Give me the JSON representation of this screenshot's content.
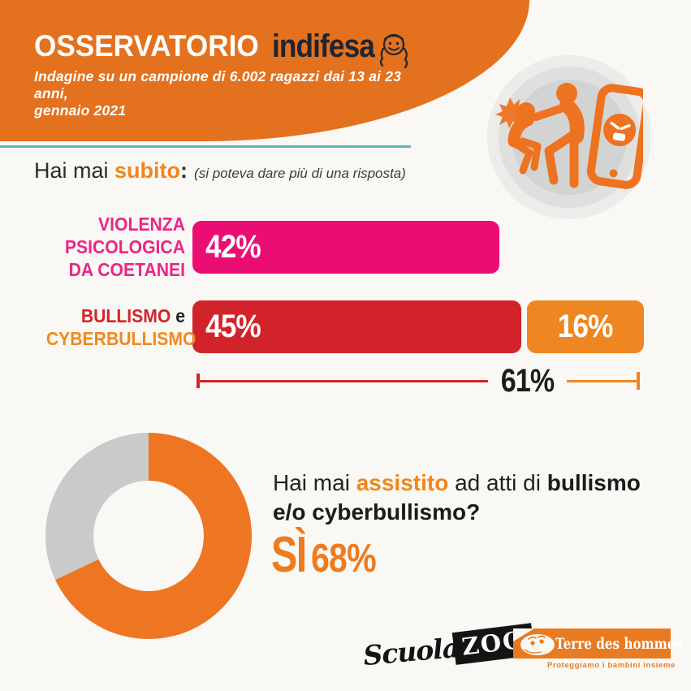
{
  "header": {
    "title": "OSSERVATORIO",
    "brand": "indifesa",
    "subtitle_line1": "Indagine su un campione di 6.002 ragazzi dai 13 ai 23 anni,",
    "subtitle_line2": "gennaio 2021"
  },
  "question1": {
    "prefix": "Hai mai ",
    "highlight": "subito",
    "colon": ":",
    "note": "(si poteva dare più di una risposta)"
  },
  "question2": {
    "prefix": "Hai mai ",
    "highlight": "assistito",
    "middle": " ad atti di ",
    "bold_line1": "bullismo",
    "bold_line2": "e/o cyberbullismo?",
    "answer_word": "SÌ",
    "answer_value": "68%"
  },
  "chart_data": [
    {
      "type": "bar",
      "orientation": "horizontal",
      "title": "Hai mai subito: (si poteva dare più di una risposta)",
      "unit": "%",
      "xlim": [
        0,
        100
      ],
      "rows": [
        {
          "category": "Violenza psicologica da coetanei",
          "label_lines": [
            [
              {
                "text": "VIOLENZA",
                "color": "#EC2586"
              }
            ],
            [
              {
                "text": "PSICOLOGICA",
                "color": "#EC2586"
              }
            ],
            [
              {
                "text": "DA COETANEI",
                "color": "#EC2586"
              }
            ]
          ],
          "segments": [
            {
              "name": "violenza psicologica",
              "value": 42,
              "label": "42%",
              "color": "#EA0D72",
              "text_align": "left"
            }
          ]
        },
        {
          "category": "Bullismo e cyberbullismo",
          "label_lines": [
            [
              {
                "text": "BULLISMO",
                "color": "#D2232B"
              },
              {
                "text": " e",
                "color": "#222222"
              }
            ],
            [
              {
                "text": "CYBERBULLISMO",
                "color": "#F08A1E"
              }
            ]
          ],
          "segments": [
            {
              "name": "bullismo",
              "value": 45,
              "label": "45%",
              "color": "#D2232B",
              "text_align": "left"
            },
            {
              "name": "cyberbullismo",
              "value": 16,
              "label": "16%",
              "color": "#EE8621",
              "text_align": "center"
            }
          ],
          "total": {
            "value": 61,
            "label": "61%",
            "left_color": "#D2232B",
            "right_color": "#EE8621"
          }
        }
      ]
    },
    {
      "type": "pie",
      "subtype": "donut",
      "title": "Hai mai assistito ad atti di bullismo e/o cyberbullismo?",
      "slices": [
        {
          "label": "Sì",
          "value": 68,
          "color": "#EE7522"
        },
        {
          "label": "",
          "value": 32,
          "color": "#C9CACB"
        }
      ],
      "start_angle_deg": 0,
      "direction": "clockwise"
    }
  ],
  "footer": {
    "scuolazoo_script": "Scuola",
    "scuolazoo_box": "ZOO",
    "tdh_name": "Terre des hommes",
    "tdh_tagline": "Proteggiamo i bambini insieme"
  },
  "colors": {
    "header_orange": "#E4711D",
    "accent_orange": "#F0861C",
    "pink": "#EA0D72",
    "red": "#D2232B",
    "bar_orange": "#EE8621",
    "donut_orange": "#EE7522",
    "donut_gray": "#C9CACB",
    "teal_divider": "#5FB5BF",
    "dark_text": "#222222"
  }
}
